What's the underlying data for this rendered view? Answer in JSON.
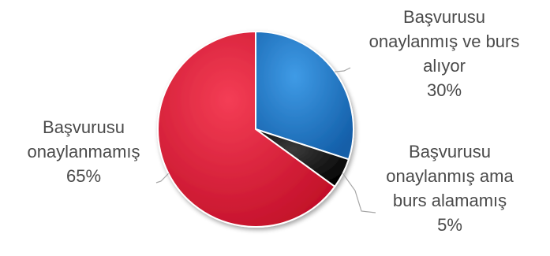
{
  "chart_data": {
    "type": "pie",
    "slices": [
      {
        "label_lines": [
          "Başvurusu",
          "onaylanmış ve burs",
          "alıyor"
        ],
        "percent_label": "30%",
        "value": 30,
        "color": "#1f78c8"
      },
      {
        "label_lines": [
          "Başvurusu",
          "onaylanmış ama",
          "burs alamamış"
        ],
        "percent_label": "5%",
        "value": 5,
        "color": "#101010"
      },
      {
        "label_lines": [
          "Başvurusu",
          "onaylanmamış"
        ],
        "percent_label": "65%",
        "value": 65,
        "color": "#e8203a"
      }
    ],
    "start_angle_deg": 0,
    "direction": "clockwise",
    "label_color": "#4a4a4a",
    "leader_line_color": "#a6a6a6"
  }
}
